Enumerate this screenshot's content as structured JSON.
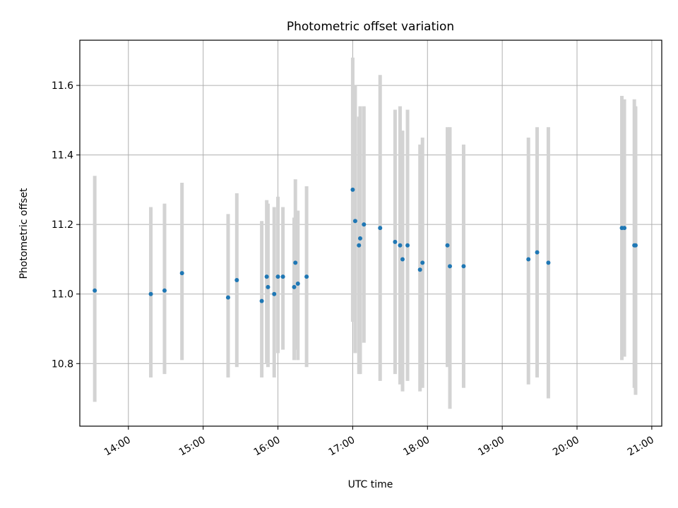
{
  "chart_data": {
    "type": "scatter",
    "title": "Photometric offset variation",
    "xlabel": "UTC time",
    "ylabel": "Photometric offset",
    "x_tick_labels": [
      "14:00",
      "15:00",
      "16:00",
      "17:00",
      "18:00",
      "19:00",
      "20:00",
      "21:00"
    ],
    "y_tick_labels": [
      "10.8",
      "11.0",
      "11.2",
      "11.4",
      "11.6"
    ],
    "y_ticks": [
      10.8,
      11.0,
      11.2,
      11.4,
      11.6
    ],
    "xlim": [
      "13:21",
      "21:08"
    ],
    "ylim": [
      10.62,
      11.73
    ],
    "grid": true,
    "marker_color": "#1f77b4",
    "errorbar_color": "#d3d3d3",
    "points": [
      {
        "t": "13:33",
        "y": 11.01,
        "lo": 10.69,
        "hi": 11.34
      },
      {
        "t": "14:18",
        "y": 11.0,
        "lo": 10.76,
        "hi": 11.25
      },
      {
        "t": "14:29",
        "y": 11.01,
        "lo": 10.77,
        "hi": 11.26
      },
      {
        "t": "14:43",
        "y": 11.06,
        "lo": 10.81,
        "hi": 11.32
      },
      {
        "t": "15:20",
        "y": 10.99,
        "lo": 10.76,
        "hi": 11.23
      },
      {
        "t": "15:27",
        "y": 11.04,
        "lo": 10.79,
        "hi": 11.29
      },
      {
        "t": "15:47",
        "y": 10.98,
        "lo": 10.76,
        "hi": 11.21
      },
      {
        "t": "15:51",
        "y": 11.05,
        "lo": 10.8,
        "hi": 11.27
      },
      {
        "t": "15:52",
        "y": 11.02,
        "lo": 10.79,
        "hi": 11.26
      },
      {
        "t": "15:57",
        "y": 11.0,
        "lo": 10.76,
        "hi": 11.25
      },
      {
        "t": "16:00",
        "y": 11.05,
        "lo": 10.83,
        "hi": 11.28
      },
      {
        "t": "16:04",
        "y": 11.05,
        "lo": 10.84,
        "hi": 11.25
      },
      {
        "t": "16:13",
        "y": 11.02,
        "lo": 10.81,
        "hi": 11.22
      },
      {
        "t": "16:14",
        "y": 11.09,
        "lo": 10.84,
        "hi": 11.33
      },
      {
        "t": "16:16",
        "y": 11.03,
        "lo": 10.81,
        "hi": 11.24
      },
      {
        "t": "16:23",
        "y": 11.05,
        "lo": 10.79,
        "hi": 11.31
      },
      {
        "t": "17:00",
        "y": 11.3,
        "lo": 10.92,
        "hi": 11.68
      },
      {
        "t": "17:02",
        "y": 11.21,
        "lo": 10.83,
        "hi": 11.6
      },
      {
        "t": "17:05",
        "y": 11.14,
        "lo": 10.77,
        "hi": 11.51
      },
      {
        "t": "17:06",
        "y": 11.16,
        "lo": 10.77,
        "hi": 11.54
      },
      {
        "t": "17:09",
        "y": 11.2,
        "lo": 10.86,
        "hi": 11.54
      },
      {
        "t": "17:22",
        "y": 11.19,
        "lo": 10.75,
        "hi": 11.63
      },
      {
        "t": "17:34",
        "y": 11.15,
        "lo": 10.77,
        "hi": 11.53
      },
      {
        "t": "17:38",
        "y": 11.14,
        "lo": 10.74,
        "hi": 11.54
      },
      {
        "t": "17:40",
        "y": 11.1,
        "lo": 10.72,
        "hi": 11.47
      },
      {
        "t": "17:44",
        "y": 11.14,
        "lo": 10.75,
        "hi": 11.53
      },
      {
        "t": "17:54",
        "y": 11.07,
        "lo": 10.72,
        "hi": 11.43
      },
      {
        "t": "17:56",
        "y": 11.09,
        "lo": 10.73,
        "hi": 11.45
      },
      {
        "t": "18:16",
        "y": 11.14,
        "lo": 10.79,
        "hi": 11.48
      },
      {
        "t": "18:18",
        "y": 11.08,
        "lo": 10.67,
        "hi": 11.48
      },
      {
        "t": "18:29",
        "y": 11.08,
        "lo": 10.73,
        "hi": 11.43
      },
      {
        "t": "19:21",
        "y": 11.1,
        "lo": 10.74,
        "hi": 11.45
      },
      {
        "t": "19:28",
        "y": 11.12,
        "lo": 10.76,
        "hi": 11.48
      },
      {
        "t": "19:37",
        "y": 11.09,
        "lo": 10.7,
        "hi": 11.48
      },
      {
        "t": "20:36",
        "y": 11.19,
        "lo": 10.81,
        "hi": 11.57
      },
      {
        "t": "20:38",
        "y": 11.19,
        "lo": 10.82,
        "hi": 11.56
      },
      {
        "t": "20:46",
        "y": 11.14,
        "lo": 10.73,
        "hi": 11.56
      },
      {
        "t": "20:47",
        "y": 11.14,
        "lo": 10.71,
        "hi": 11.54
      }
    ]
  }
}
